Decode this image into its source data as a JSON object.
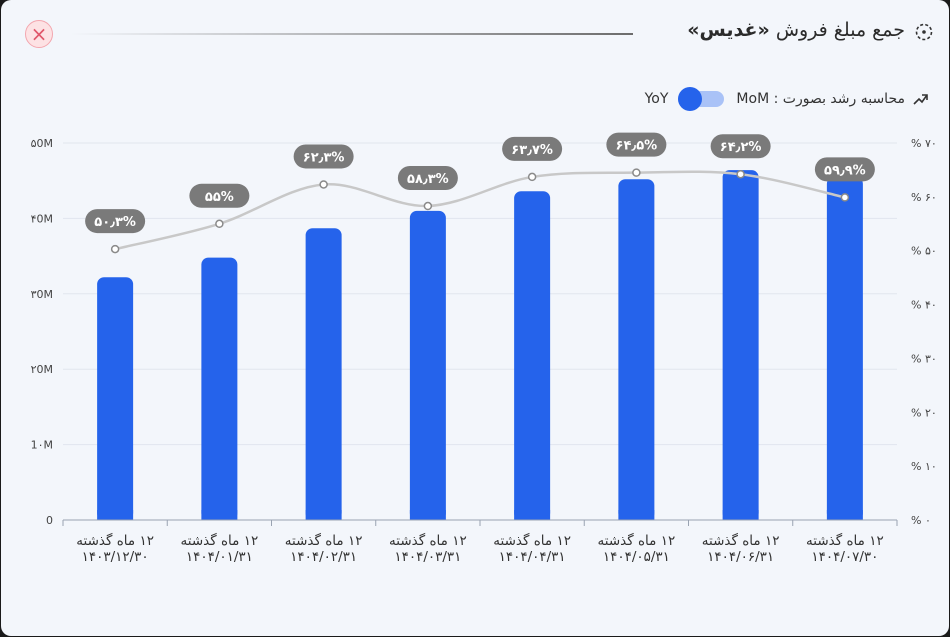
{
  "header": {
    "title_prefix": "جمع مبلغ فروش",
    "title_entity": "«غدیس»",
    "close_icon": "close-icon",
    "title_icon": "dashed-circle-icon"
  },
  "toolbar": {
    "growth_label": "محاسبه رشد بصورت : MoM",
    "yoy_label": "YoY",
    "toggle_state": "MoM",
    "trend_icon": "trend-up-icon"
  },
  "colors": {
    "bar": "#2563eb",
    "line": "#c8c8c8",
    "label_bg": "#7a7a7a",
    "close": "#e0566a"
  },
  "chart_data": {
    "type": "bar",
    "categories": [
      [
        "۱۲ ماه گذشته",
        "۱۴۰۳/۱۲/۳۰"
      ],
      [
        "۱۲ ماه گذشته",
        "۱۴۰۴/۰۱/۳۱"
      ],
      [
        "۱۲ ماه گذشته",
        "۱۴۰۴/۰۲/۳۱"
      ],
      [
        "۱۲ ماه گذشته",
        "۱۴۰۴/۰۳/۳۱"
      ],
      [
        "۱۲ ماه گذشته",
        "۱۴۰۴/۰۴/۳۱"
      ],
      [
        "۱۲ ماه گذشته",
        "۱۴۰۴/۰۵/۳۱"
      ],
      [
        "۱۲ ماه گذشته",
        "۱۴۰۴/۰۶/۳۱"
      ],
      [
        "۱۲ ماه گذشته",
        "۱۴۰۴/۰۷/۳۰"
      ]
    ],
    "series": [
      {
        "type": "bar",
        "axis": "left",
        "values": [
          32.2,
          34.8,
          38.7,
          41.0,
          43.6,
          45.2,
          46.4,
          45.5
        ]
      },
      {
        "type": "line",
        "axis": "right",
        "values": [
          50.3,
          55,
          62.3,
          58.3,
          63.7,
          64.5,
          64.2,
          59.9
        ],
        "labels": [
          "۵۰٫۳%",
          "۵۵%",
          "۶۲٫۳%",
          "۵۸٫۳%",
          "۶۳٫۷%",
          "۶۴٫۵%",
          "۶۴٫۲%",
          "۵۹٫۹%"
        ]
      }
    ],
    "left_axis": {
      "ylim": [
        0,
        50
      ],
      "ticks": [
        "0",
        "1۰M",
        "۲0M",
        "۳0M",
        "۴0M",
        "۵0M"
      ]
    },
    "right_axis": {
      "ylim": [
        0,
        70
      ],
      "ticks": [
        "% ۰",
        "% ۱۰",
        "% ۲۰",
        "% ۳۰",
        "% ۴۰",
        "% ۵۰",
        "% ۶۰",
        "% ۷۰"
      ]
    },
    "grid": true
  }
}
